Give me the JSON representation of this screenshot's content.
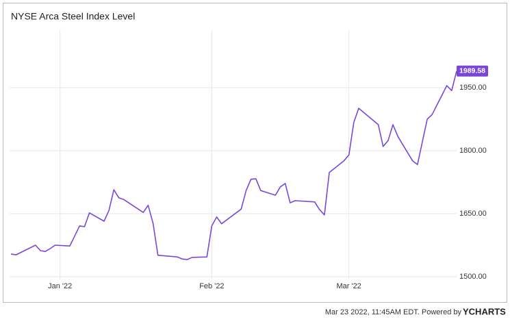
{
  "chart_data": {
    "type": "line",
    "title": "NYSE Arca Steel Index Level",
    "x": [
      -10,
      -9,
      -5,
      -4,
      -3,
      -2,
      -1,
      2,
      4,
      5,
      6,
      9,
      10,
      11,
      12,
      13,
      17,
      18,
      19,
      20,
      24,
      25,
      26,
      27,
      30,
      31,
      32,
      33,
      37,
      38,
      39,
      40,
      41,
      44,
      45,
      46,
      47,
      48,
      52,
      53,
      54,
      55,
      58,
      59,
      60,
      61,
      65,
      66,
      67,
      68,
      69,
      72,
      73,
      75,
      76,
      79,
      80,
      81
    ],
    "series": [
      {
        "name": "NYSE Arca Steel Index Level",
        "color": "#7b45d8",
        "values": [
          1554,
          1552,
          1575,
          1562,
          1560,
          1567,
          1575,
          1573,
          1621,
          1619,
          1652,
          1632,
          1658,
          1707,
          1688,
          1684,
          1653,
          1670,
          1627,
          1551,
          1547,
          1542,
          1541,
          1546,
          1547,
          1621,
          1642,
          1626,
          1661,
          1705,
          1732,
          1733,
          1705,
          1694,
          1714,
          1722,
          1676,
          1681,
          1678,
          1660,
          1647,
          1748,
          1776,
          1790,
          1867,
          1901,
          1862,
          1810,
          1824,
          1862,
          1834,
          1776,
          1767,
          1875,
          1886,
          1955,
          1943,
          1989.58
        ]
      }
    ],
    "last_value_label": "1989.58",
    "xlim": [
      -10.3,
      81
    ],
    "xticks": [
      {
        "value": 0,
        "label": "Jan '22"
      },
      {
        "value": 31,
        "label": "Feb '22"
      },
      {
        "value": 59,
        "label": "Mar '22"
      }
    ],
    "ylim": [
      1500,
      2080
    ],
    "yticks": [
      {
        "value": 1500,
        "label": "1500.00"
      },
      {
        "value": 1650,
        "label": "1650.00"
      },
      {
        "value": 1800,
        "label": "1800.00"
      },
      {
        "value": 1950,
        "label": "1950.00"
      }
    ],
    "grid": true,
    "footer": "Mar 23 2022, 11:45AM EDT. Powered by",
    "brand": "YCHARTS"
  }
}
